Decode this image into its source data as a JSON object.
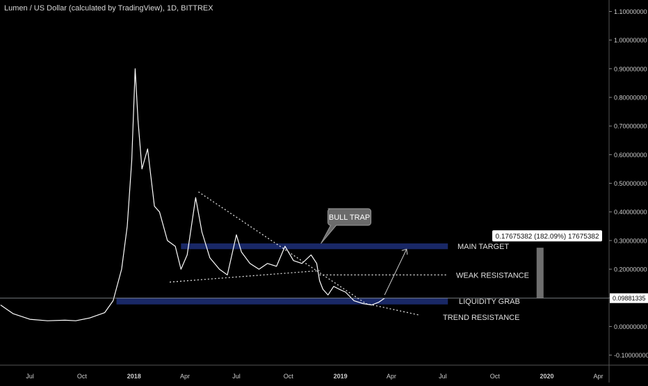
{
  "chart_data": {
    "type": "line",
    "title": "Lumen / US Dollar (calculated by TradingView), 1D, BITTREX",
    "x_ticks": [
      "Jul",
      "Oct",
      "2018",
      "Apr",
      "Jul",
      "Oct",
      "2019",
      "Apr",
      "Jul",
      "Oct",
      "2020",
      "Apr"
    ],
    "y_ticks": [
      "1.10000000",
      "1.00000000",
      "0.90000000",
      "0.80000000",
      "0.70000000",
      "0.60000000",
      "0.50000000",
      "0.40000000",
      "0.30000000",
      "0.20000000",
      "0.10000000",
      "0.00000000",
      "-0.10000000"
    ],
    "ylim": [
      -0.135,
      1.14
    ],
    "xlim": [
      "2017-05-09",
      "2020-04-20"
    ],
    "grid": false,
    "series": [
      {
        "values_x": [
          "2017-05-10",
          "2017-06-01",
          "2017-07-01",
          "2017-08-01",
          "2017-09-01",
          "2017-09-20",
          "2017-10-15",
          "2017-11-10",
          "2017-11-25",
          "2017-12-10",
          "2017-12-20",
          "2017-12-28",
          "2018-01-03",
          "2018-01-08",
          "2018-01-15",
          "2018-01-25",
          "2018-02-06",
          "2018-02-15",
          "2018-03-01",
          "2018-03-15",
          "2018-03-25",
          "2018-04-05",
          "2018-04-20",
          "2018-05-01",
          "2018-05-15",
          "2018-06-01",
          "2018-06-15",
          "2018-07-01",
          "2018-07-10",
          "2018-07-25",
          "2018-08-10",
          "2018-08-25",
          "2018-09-10",
          "2018-09-25",
          "2018-10-10",
          "2018-10-25",
          "2018-11-10",
          "2018-11-20",
          "2018-11-25",
          "2018-12-01",
          "2018-12-10",
          "2018-12-20",
          "2018-12-30",
          "2019-01-10",
          "2019-01-25",
          "2019-02-10",
          "2019-02-25",
          "2019-03-10",
          "2019-03-20"
        ],
        "values": [
          0.075,
          0.045,
          0.025,
          0.02,
          0.022,
          0.02,
          0.03,
          0.048,
          0.09,
          0.2,
          0.35,
          0.58,
          0.9,
          0.72,
          0.55,
          0.62,
          0.42,
          0.4,
          0.3,
          0.28,
          0.2,
          0.25,
          0.45,
          0.33,
          0.24,
          0.2,
          0.18,
          0.32,
          0.26,
          0.22,
          0.2,
          0.22,
          0.21,
          0.28,
          0.23,
          0.22,
          0.25,
          0.22,
          0.16,
          0.13,
          0.11,
          0.14,
          0.13,
          0.12,
          0.09,
          0.08,
          0.075,
          0.085,
          0.0988
        ]
      }
    ],
    "current_price": "0.09881335",
    "measure_label": "0.17675382 (182.09%) 17675382",
    "annotations": [
      "BULL TRAP",
      "MAIN TARGET",
      "WEAK RESISTANCE",
      "LIQUIDITY GRAB",
      "TREND RESISTANCE"
    ],
    "zones": [
      {
        "label": "MAIN TARGET",
        "y": [
          0.27,
          0.29
        ]
      },
      {
        "label": "LIQUIDITY GRAB",
        "y": [
          0.077,
          0.1
        ]
      }
    ],
    "colors": {
      "background": "#000000",
      "price": "#ffffff",
      "zone": "#1a2a6c",
      "text": "#d8d8d8",
      "callout": "#6b6b6b"
    }
  }
}
